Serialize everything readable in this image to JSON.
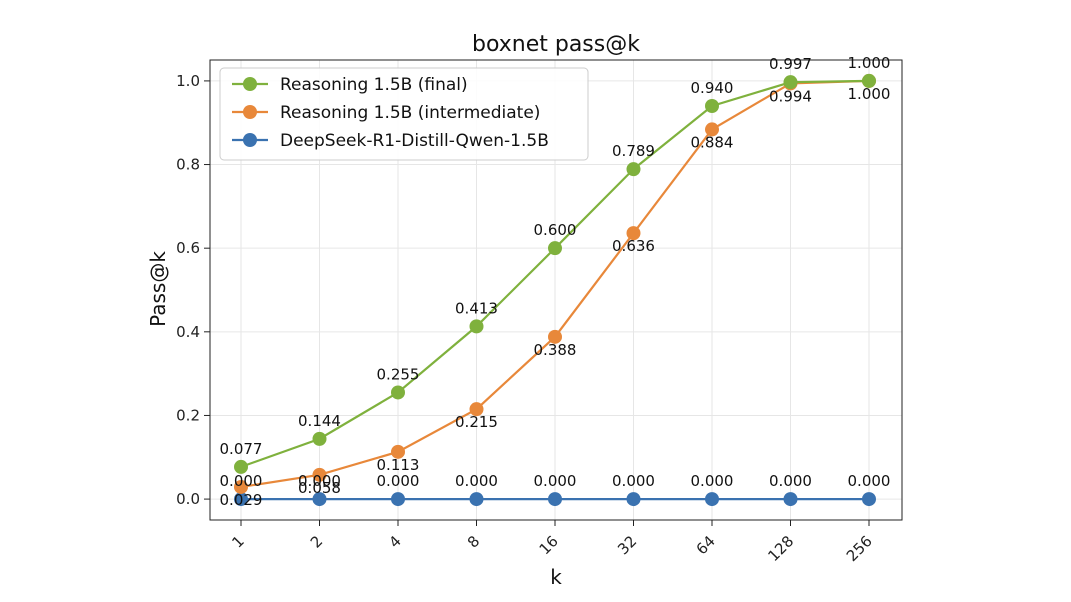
{
  "chart_data": {
    "type": "line",
    "title": "boxnet pass@k",
    "xlabel": "k",
    "ylabel": "Pass@k",
    "categories": [
      "1",
      "2",
      "4",
      "8",
      "16",
      "32",
      "64",
      "128",
      "256"
    ],
    "yticks": [
      "0.0",
      "0.2",
      "0.4",
      "0.6",
      "0.8",
      "1.0"
    ],
    "ylim": [
      -0.05,
      1.05
    ],
    "grid": true,
    "legend_position": "top-left",
    "series": [
      {
        "name": "Reasoning 1.5B (final)",
        "color": "#7fb13d",
        "values": [
          0.077,
          0.144,
          0.255,
          0.413,
          0.6,
          0.789,
          0.94,
          0.997,
          1.0
        ],
        "labels": [
          "0.077",
          "0.144",
          "0.255",
          "0.413",
          "0.600",
          "0.789",
          "0.940",
          "0.997",
          "1.000"
        ]
      },
      {
        "name": "Reasoning 1.5B (intermediate)",
        "color": "#e8883a",
        "values": [
          0.029,
          0.058,
          0.113,
          0.215,
          0.388,
          0.636,
          0.884,
          0.994,
          1.0
        ],
        "labels": [
          "0.029",
          "0.058",
          "0.113",
          "0.215",
          "0.388",
          "0.636",
          "0.884",
          "0.994",
          "1.000"
        ]
      },
      {
        "name": "DeepSeek-R1-Distill-Qwen-1.5B",
        "color": "#3a72b0",
        "values": [
          0.0,
          0.0,
          0.0,
          0.0,
          0.0,
          0.0,
          0.0,
          0.0,
          0.0
        ],
        "labels": [
          "0.000",
          "0.000",
          "0.000",
          "0.000",
          "0.000",
          "0.000",
          "0.000",
          "0.000",
          "0.000"
        ]
      }
    ]
  }
}
